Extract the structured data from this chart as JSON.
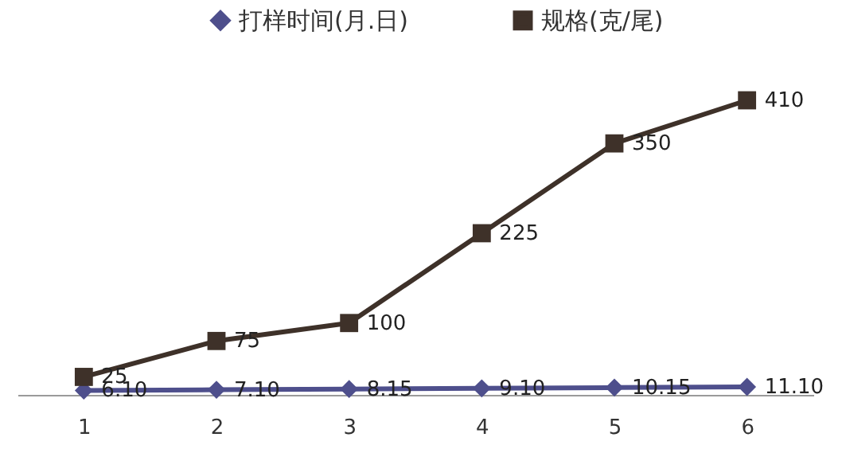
{
  "chart_data": {
    "type": "line",
    "categories": [
      "1",
      "2",
      "3",
      "4",
      "5",
      "6"
    ],
    "tick_labels": "x",
    "legend": "top",
    "grid": false,
    "series": [
      {
        "name": "打样时间(月.日)",
        "color": "#4e4f8c",
        "marker": "diamond",
        "values": [
          6.1,
          7.1,
          8.15,
          9.1,
          10.15,
          11.1
        ],
        "value_labels": [
          "6.10",
          "7.10",
          "8.15",
          "9.10",
          "10.15",
          "11.10"
        ]
      },
      {
        "name": "规格(克/尾)",
        "color": "#3e3129",
        "marker": "square",
        "values": [
          25,
          75,
          100,
          225,
          350,
          410
        ],
        "value_labels": [
          "25",
          "75",
          "100",
          "225",
          "350",
          "410"
        ]
      }
    ]
  }
}
